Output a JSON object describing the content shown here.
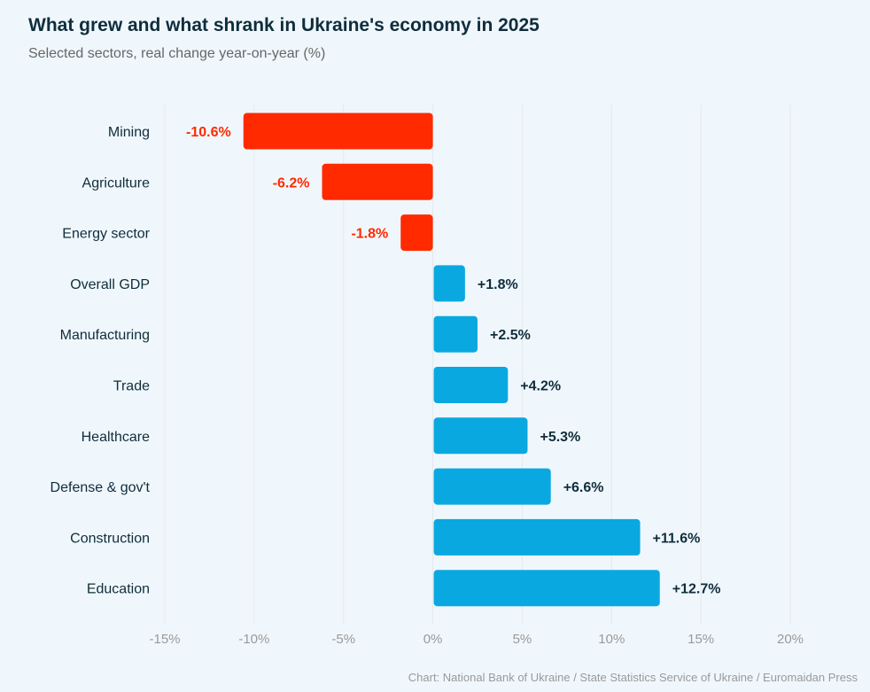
{
  "title": "What grew and what shrank in Ukraine's economy in 2025",
  "subtitle": "Selected sectors, real change year-on-year (%)",
  "source": "Chart: National Bank of Ukraine / State Statistics Service of Ukraine / Euromaidan Press",
  "chart_data": {
    "type": "bar",
    "orientation": "horizontal",
    "categories": [
      "Mining",
      "Agriculture",
      "Energy sector",
      "Overall GDP",
      "Manufacturing",
      "Trade",
      "Healthcare",
      "Defense & gov't",
      "Construction",
      "Education"
    ],
    "values": [
      -10.6,
      -6.2,
      -1.8,
      1.8,
      2.5,
      4.2,
      5.3,
      6.6,
      11.6,
      12.7
    ],
    "data_labels": [
      "-10.6%",
      "-6.2%",
      "-1.8%",
      "+1.8%",
      "+2.5%",
      "+4.2%",
      "+5.3%",
      "+6.6%",
      "+11.6%",
      "+12.7%"
    ],
    "xlim": [
      -15,
      20
    ],
    "xticks": [
      -15,
      -10,
      -5,
      0,
      5,
      10,
      15,
      20
    ],
    "xtick_labels": [
      "-15%",
      "-10%",
      "-5%",
      "0%",
      "5%",
      "10%",
      "15%",
      "20%"
    ],
    "grid": "vertical",
    "colors": {
      "negative": "#ff2a00",
      "positive": "#0aa8e0",
      "positive_label": "#0f2d3c"
    }
  }
}
